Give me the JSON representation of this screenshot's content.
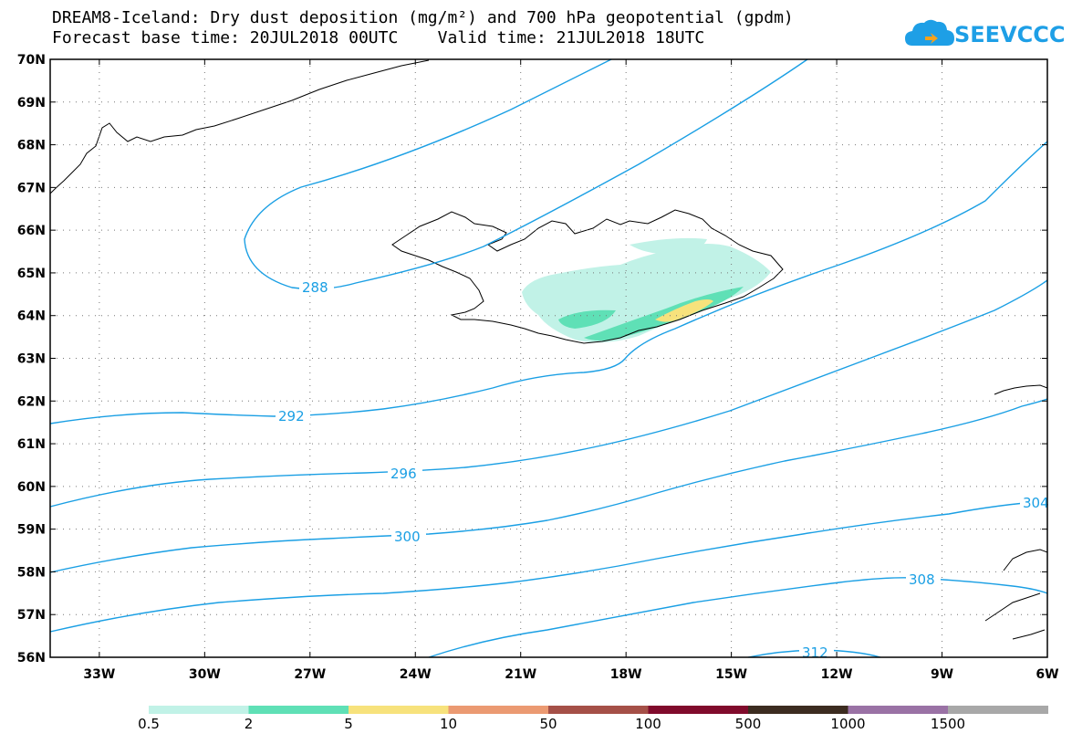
{
  "header": {
    "title_line1": "DREAM8-Iceland: Dry dust deposition (mg/m²) and 700 hPa geopotential (gpdm)",
    "title_line2": "Forecast base time: 20JUL2018 00UTC    Valid time: 21JUL2018 18UTC"
  },
  "logo": {
    "text": "SEEVCCC",
    "color": "#1e9fe6"
  },
  "map": {
    "lat_labels": [
      "70N",
      "69N",
      "68N",
      "67N",
      "66N",
      "65N",
      "64N",
      "63N",
      "62N",
      "61N",
      "60N",
      "59N",
      "58N",
      "57N",
      "56N"
    ],
    "lon_labels": [
      "33W",
      "30W",
      "27W",
      "24W",
      "21W",
      "18W",
      "15W",
      "12W",
      "9W",
      "6W"
    ],
    "contour_color": "#1a9fe4",
    "contour_labels": [
      "288",
      "292",
      "296",
      "300",
      "304",
      "308",
      "312"
    ]
  },
  "legend": {
    "colors": [
      "#c1f2e7",
      "#5fe0b6",
      "#f7e27c",
      "#eb9a72",
      "#a55048",
      "#800b2c",
      "#3c2c20",
      "#9a72a5",
      "#a8a8a8"
    ],
    "labels": [
      "0.5",
      "2",
      "5",
      "10",
      "50",
      "100",
      "500",
      "1000",
      "1500"
    ]
  }
}
